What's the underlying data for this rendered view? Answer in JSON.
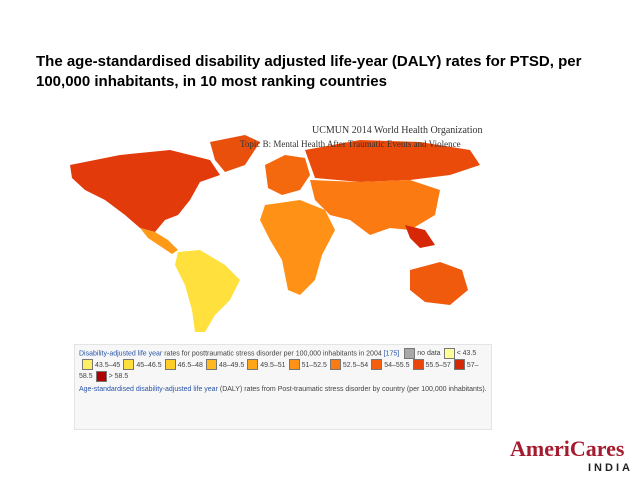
{
  "slide_title": "The age-standardised disability adjusted life-year (DALY) rates for PTSD, per 100,000 inhabitants, in 10 most ranking countries",
  "image_header": {
    "line1": "UCMUN 2014 World Health Organization",
    "line2": "Topic B: Mental Health After Traumatic Events and Violence"
  },
  "legend": {
    "caption_link": "Disability-adjusted life year",
    "caption_rest": "rates for posttraumatic stress disorder per 100,000 inhabitants in 2004",
    "caption_ref": "[175]",
    "items": [
      {
        "label": "no data",
        "color": "#a8a8a8"
      },
      {
        "label": "< 43.5",
        "color": "#ffff99"
      },
      {
        "label": "43.5–45",
        "color": "#ffef66"
      },
      {
        "label": "45–46.5",
        "color": "#ffdf3c"
      },
      {
        "label": "46.5–48",
        "color": "#ffcd28"
      },
      {
        "label": "48–49.5",
        "color": "#ffb81e"
      },
      {
        "label": "49.5–51",
        "color": "#ffa51a"
      },
      {
        "label": "51–52.5",
        "color": "#ff9116"
      },
      {
        "label": "52.5–54",
        "color": "#fb7a12"
      },
      {
        "label": "54–55.5",
        "color": "#f4600e"
      },
      {
        "label": "55.5–57",
        "color": "#ea460a"
      },
      {
        "label": "57–58.5",
        "color": "#d62806"
      },
      {
        "label": "> 58.5",
        "color": "#b00000"
      }
    ],
    "note_link": "Age-standardised disability-adjusted life year",
    "note_rest": "(DALY) rates from Post-traumatic stress disorder by country (per 100,000 inhabitants)."
  },
  "logo": {
    "name": "AmeriCares",
    "sub": "INDIA"
  }
}
